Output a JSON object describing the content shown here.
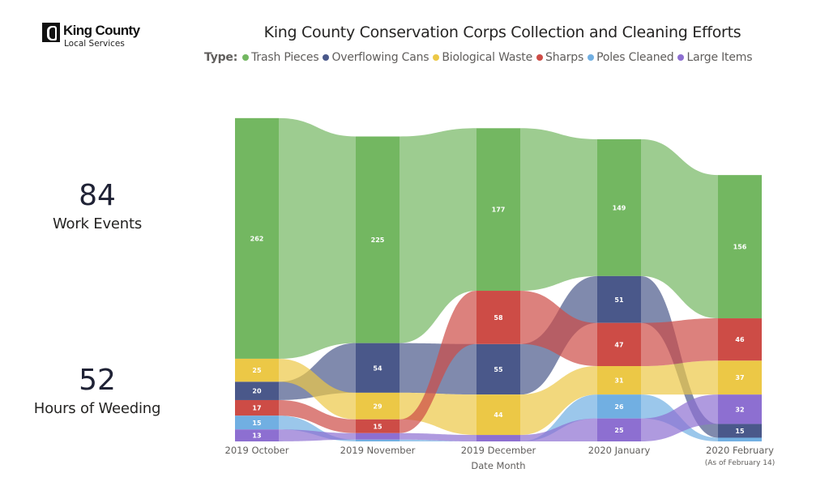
{
  "logo": {
    "title": "King County",
    "subtitle": "Local Services"
  },
  "kpis": [
    {
      "value": "84",
      "label": "Work Events"
    },
    {
      "value": "52",
      "label": "Hours of Weeding"
    }
  ],
  "chart_data": {
    "type": "ribbon",
    "title": "King County Conservation Corps Collection and Cleaning Efforts",
    "legend_title": "Type:",
    "legend_position": "top",
    "xlabel": "Date Month",
    "ylabel": "",
    "categories": [
      "2019 October",
      "2019 November",
      "2019 December",
      "2020 January",
      "2020 February"
    ],
    "category_sublabels": [
      "",
      "",
      "",
      "",
      "(As of February 14)"
    ],
    "series": [
      {
        "name": "Trash Pieces",
        "color": "#73b761",
        "values": [
          262,
          225,
          177,
          149,
          156
        ],
        "labels": [
          "262",
          "225",
          "177",
          "149",
          "156"
        ]
      },
      {
        "name": "Overflowing Cans",
        "color": "#4a588a",
        "values": [
          20,
          54,
          55,
          51,
          15
        ],
        "labels": [
          "20",
          "54",
          "55",
          "51",
          "15"
        ]
      },
      {
        "name": "Biological Waste",
        "color": "#ecc846",
        "values": [
          25,
          29,
          44,
          31,
          37
        ],
        "labels": [
          "25",
          "29",
          "44",
          "31",
          "37"
        ]
      },
      {
        "name": "Sharps",
        "color": "#cd4c46",
        "values": [
          17,
          15,
          58,
          47,
          46
        ],
        "labels": [
          "17",
          "15",
          "58",
          "47",
          "46"
        ]
      },
      {
        "name": "Poles Cleaned",
        "color": "#71afe2",
        "values": [
          15,
          2,
          0,
          26,
          4
        ],
        "labels": [
          "15",
          "",
          "",
          "26",
          ""
        ]
      },
      {
        "name": "Large Items",
        "color": "#8d6fd1",
        "values": [
          13,
          7,
          7,
          25,
          32
        ],
        "labels": [
          "13",
          "",
          "",
          "25",
          "32"
        ]
      }
    ]
  }
}
